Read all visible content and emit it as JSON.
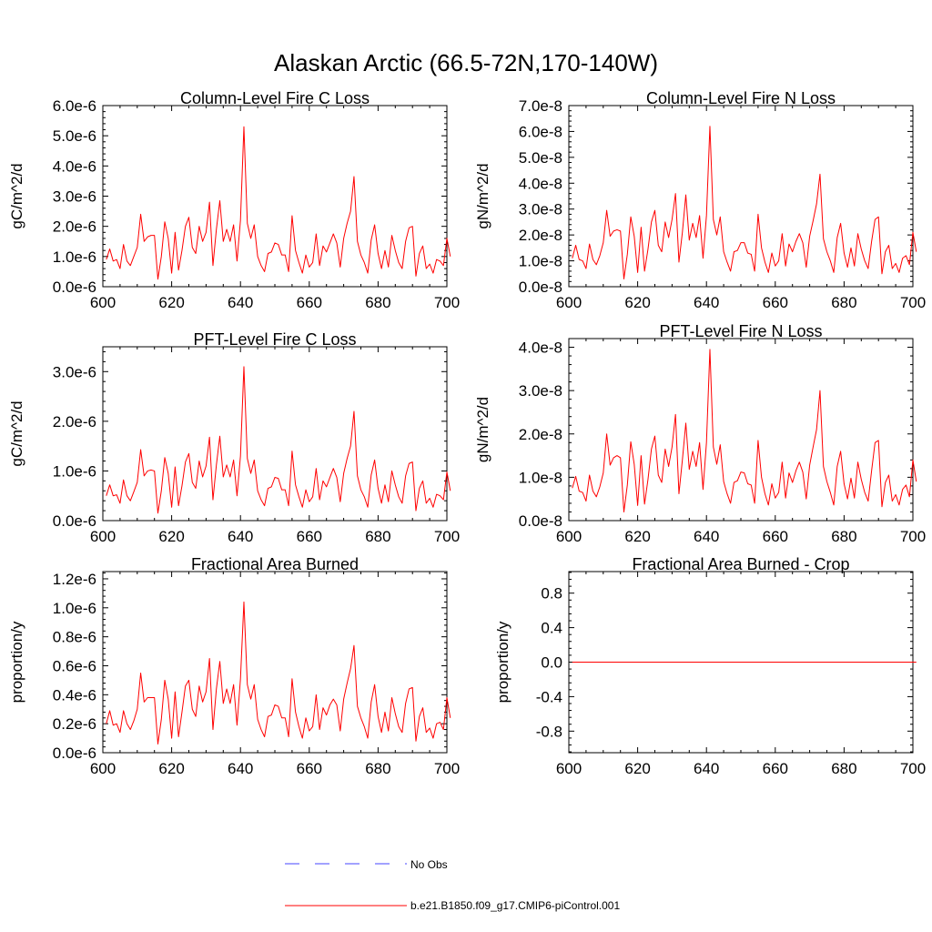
{
  "figure": {
    "title": "Alaskan Arctic (66.5-72N,170-140W)"
  },
  "legend": [
    {
      "label": "No Obs",
      "color": "#4444ff",
      "style": "dashed"
    },
    {
      "label": "b.e21.B1850.f09_g17.CMIP6-piControl.001",
      "color": "#ff0000",
      "style": "solid"
    }
  ],
  "chart_data": [
    {
      "type": "line",
      "title": "Column-Level Fire C Loss",
      "xlabel": "",
      "ylabel": "gC/m^2/d",
      "xlim": [
        600,
        700
      ],
      "ylim": [
        0,
        6e-06
      ],
      "xticks": [
        600,
        620,
        640,
        660,
        680,
        700
      ],
      "xtick_labels": [
        "600",
        "620",
        "640",
        "660",
        "680",
        "700"
      ],
      "yticks": [
        0,
        1e-06,
        2e-06,
        3e-06,
        4e-06,
        5e-06,
        6e-06
      ],
      "ytick_labels": [
        "0.0e-6",
        "1.0e-6",
        "2.0e-6",
        "3.0e-6",
        "4.0e-6",
        "5.0e-6",
        "6.0e-6"
      ],
      "x_start": 601,
      "series": [
        {
          "name": "b.e21.B1850.f09_g17.CMIP6-piControl.001",
          "color": "#ff0000",
          "values": [
            9e-07,
            1.25e-06,
            8.5e-07,
            9e-07,
            6e-07,
            1.4e-06,
            8.5e-07,
            7e-07,
            1e-06,
            1.3e-06,
            2.4e-06,
            1.5e-06,
            1.65e-06,
            1.7e-06,
            1.7e-06,
            2.5e-07,
            1e-06,
            2.15e-06,
            1.6e-06,
            4.5e-07,
            1.8e-06,
            5.5e-07,
            1.2e-06,
            2e-06,
            2.3e-06,
            1.3e-06,
            1.1e-06,
            2e-06,
            1.5e-06,
            1.8e-06,
            2.8e-06,
            7e-07,
            1.9e-06,
            2.85e-06,
            1.5e-06,
            1.9e-06,
            1.5e-06,
            2.05e-06,
            8.5e-07,
            2.2e-06,
            5.3e-06,
            2.1e-06,
            1.6e-06,
            2.05e-06,
            1e-06,
            7e-07,
            5e-07,
            1.1e-06,
            1.15e-06,
            1.45e-06,
            1.4e-06,
            1.05e-06,
            1.05e-06,
            5e-07,
            2.35e-06,
            1.2e-06,
            8e-07,
            4.5e-07,
            1.05e-06,
            6.5e-07,
            8e-07,
            1.75e-06,
            7e-07,
            1.35e-06,
            1.15e-06,
            1.45e-06,
            1.75e-06,
            1.45e-06,
            6.5e-07,
            1.6e-06,
            2.1e-06,
            2.5e-06,
            3.65e-06,
            1.5e-06,
            1.05e-06,
            8e-07,
            4.5e-07,
            1.55e-06,
            2.05e-06,
            1.1e-06,
            6e-07,
            1.2e-06,
            6.5e-07,
            1.7e-06,
            1.2e-06,
            8e-07,
            6e-07,
            1.5e-06,
            1.95e-06,
            2e-06,
            3.5e-07,
            1.1e-06,
            1.35e-06,
            6e-07,
            7.5e-07,
            4.5e-07,
            9e-07,
            8.5e-07,
            7e-07,
            1.6e-06,
            1e-06
          ]
        }
      ]
    },
    {
      "type": "line",
      "title": "Column-Level Fire N Loss",
      "xlabel": "",
      "ylabel": "gN/m^2/d",
      "xlim": [
        600,
        700
      ],
      "ylim": [
        0,
        7e-08
      ],
      "xticks": [
        600,
        620,
        640,
        660,
        680,
        700
      ],
      "xtick_labels": [
        "600",
        "620",
        "640",
        "660",
        "680",
        "700"
      ],
      "yticks": [
        0,
        1e-08,
        2e-08,
        3e-08,
        4e-08,
        5e-08,
        6e-08,
        7e-08
      ],
      "ytick_labels": [
        "0.0e-8",
        "1.0e-8",
        "2.0e-8",
        "3.0e-8",
        "4.0e-8",
        "5.0e-8",
        "6.0e-8",
        "7.0e-8"
      ],
      "x_start": 601,
      "series": [
        {
          "name": "b.e21.B1850.f09_g17.CMIP6-piControl.001",
          "color": "#ff0000",
          "values": [
            1.1e-08,
            1.6e-08,
            1.05e-08,
            1e-08,
            7e-09,
            1.65e-08,
            1.05e-08,
            8.5e-09,
            1.2e-08,
            1.7e-08,
            2.95e-08,
            1.95e-08,
            2.15e-08,
            2.2e-08,
            2.15e-08,
            3e-09,
            1.25e-08,
            2.7e-08,
            1.95e-08,
            5.5e-09,
            2.3e-08,
            6e-09,
            1.45e-08,
            2.5e-08,
            2.95e-08,
            1.6e-08,
            1.35e-08,
            2.5e-08,
            1.9e-08,
            2.6e-08,
            3.6e-08,
            9.5e-09,
            2.1e-08,
            3.55e-08,
            1.8e-08,
            2.45e-08,
            1.9e-08,
            2.75e-08,
            1.1e-08,
            2.75e-08,
            6.2e-08,
            2.6e-08,
            2e-08,
            2.7e-08,
            1.35e-08,
            9.5e-09,
            6e-09,
            1.35e-08,
            1.4e-08,
            1.7e-08,
            1.7e-08,
            1.3e-08,
            1.25e-08,
            6e-09,
            2.8e-08,
            1.5e-08,
            9.5e-09,
            5.5e-09,
            1.3e-08,
            8e-09,
            1e-08,
            2.05e-08,
            8e-09,
            1.65e-08,
            1.35e-08,
            1.75e-08,
            2.05e-08,
            1.7e-08,
            7.5e-09,
            1.95e-08,
            2.55e-08,
            3.2e-08,
            4.35e-08,
            1.85e-08,
            1.35e-08,
            1e-08,
            5.5e-09,
            1.9e-08,
            2.45e-08,
            1.3e-08,
            7.5e-09,
            1.5e-08,
            8e-09,
            2.05e-08,
            1.45e-08,
            1e-08,
            7e-09,
            1.75e-08,
            2.6e-08,
            2.7e-08,
            5e-09,
            1.35e-08,
            1.6e-08,
            7e-09,
            9e-09,
            5.5e-09,
            1.1e-08,
            1.2e-08,
            8.5e-09,
            2.1e-08,
            1.35e-08
          ]
        }
      ]
    },
    {
      "type": "line",
      "title": "PFT-Level Fire C Loss",
      "xlabel": "",
      "ylabel": "gC/m^2/d",
      "xlim": [
        600,
        700
      ],
      "ylim": [
        0,
        3.5e-06
      ],
      "xticks": [
        600,
        620,
        640,
        660,
        680,
        700
      ],
      "xtick_labels": [
        "600",
        "620",
        "640",
        "660",
        "680",
        "700"
      ],
      "yticks": [
        0,
        1e-06,
        2e-06,
        3e-06
      ],
      "ytick_labels": [
        "0.0e-6",
        "1.0e-6",
        "2.0e-6",
        "3.0e-6"
      ],
      "x_start": 601,
      "series": [
        {
          "name": "b.e21.B1850.f09_g17.CMIP6-piControl.001",
          "color": "#ff0000",
          "values": [
            5e-07,
            7.2e-07,
            5e-07,
            5.2e-07,
            3.5e-07,
            8.2e-07,
            5e-07,
            4e-07,
            5.8e-07,
            7.7e-07,
            1.43e-06,
            9e-07,
            1e-06,
            1.02e-06,
            1e-06,
            1.5e-07,
            6e-07,
            1.27e-06,
            9.5e-07,
            2.7e-07,
            1.08e-06,
            3e-07,
            7e-07,
            1.18e-06,
            1.35e-06,
            7.7e-07,
            6.5e-07,
            1.2e-06,
            8.8e-07,
            1.1e-06,
            1.68e-06,
            4.2e-07,
            1.12e-06,
            1.7e-06,
            8.8e-07,
            1.12e-06,
            8.8e-07,
            1.22e-06,
            5e-07,
            1.3e-06,
            3.1e-06,
            1.25e-06,
            9.5e-07,
            1.22e-06,
            6e-07,
            4.2e-07,
            3e-07,
            6.5e-07,
            6.8e-07,
            8.7e-07,
            8.5e-07,
            6.2e-07,
            6.2e-07,
            3e-07,
            1.4e-06,
            7.2e-07,
            4.8e-07,
            2.7e-07,
            6.2e-07,
            3.8e-07,
            4.8e-07,
            1.05e-06,
            4.2e-07,
            8e-07,
            6.8e-07,
            8.7e-07,
            1.05e-06,
            8.7e-07,
            3.8e-07,
            9.5e-07,
            1.25e-06,
            1.5e-06,
            2.2e-06,
            9e-07,
            6.2e-07,
            4.8e-07,
            2.7e-07,
            9.2e-07,
            1.22e-06,
            6.5e-07,
            3.5e-07,
            7.2e-07,
            3.8e-07,
            1e-06,
            7.2e-07,
            4.8e-07,
            3.5e-07,
            9e-07,
            1.15e-06,
            1.18e-06,
            2e-07,
            6.5e-07,
            8e-07,
            3.5e-07,
            4.5e-07,
            2.7e-07,
            5.3e-07,
            5e-07,
            4.2e-07,
            9.8e-07,
            6e-07
          ]
        }
      ]
    },
    {
      "type": "line",
      "title": "PFT-Level Fire N Loss",
      "xlabel": "",
      "ylabel": "gN/m^2/d",
      "xlim": [
        600,
        700
      ],
      "ylim": [
        0,
        4.2e-08
      ],
      "xticks": [
        600,
        620,
        640,
        660,
        680,
        700
      ],
      "xtick_labels": [
        "600",
        "620",
        "640",
        "660",
        "680",
        "700"
      ],
      "yticks": [
        0,
        1e-08,
        2e-08,
        3e-08,
        4e-08
      ],
      "ytick_labels": [
        "0.0e-8",
        "1.0e-8",
        "2.0e-8",
        "3.0e-8",
        "4.0e-8"
      ],
      "x_start": 601,
      "series": [
        {
          "name": "b.e21.B1850.f09_g17.CMIP6-piControl.001",
          "color": "#ff0000",
          "values": [
            7.5e-09,
            1.02e-08,
            6.8e-09,
            6.5e-09,
            4.5e-09,
            1.05e-08,
            6.8e-09,
            5.5e-09,
            7.8e-09,
            1.1e-08,
            2e-08,
            1.28e-08,
            1.45e-08,
            1.5e-08,
            1.45e-08,
            2e-09,
            8.2e-09,
            1.82e-08,
            1.3e-08,
            3.5e-09,
            1.5e-08,
            3.8e-09,
            9.5e-09,
            1.65e-08,
            1.95e-08,
            1.05e-08,
            8.8e-09,
            1.65e-08,
            1.25e-08,
            1.7e-08,
            2.45e-08,
            6.2e-09,
            1.4e-08,
            2.25e-08,
            1.18e-08,
            1.6e-08,
            1.25e-08,
            1.8e-08,
            7.2e-09,
            1.8e-08,
            3.95e-08,
            1.7e-08,
            1.3e-08,
            1.75e-08,
            9e-09,
            6.2e-09,
            4e-09,
            8.8e-09,
            9.2e-09,
            1.12e-08,
            1.1e-08,
            8.5e-09,
            8.2e-09,
            4e-09,
            1.85e-08,
            1e-08,
            6.2e-09,
            3.6e-09,
            8.5e-09,
            5.2e-09,
            6.5e-09,
            1.35e-08,
            5.2e-09,
            1.1e-08,
            8.8e-09,
            1.15e-08,
            1.35e-08,
            1.12e-08,
            5e-09,
            1.28e-08,
            1.7e-08,
            2.1e-08,
            3e-08,
            1.25e-08,
            9e-09,
            6.5e-09,
            3.6e-09,
            1.25e-08,
            1.6e-08,
            8.5e-09,
            5e-09,
            9.8e-09,
            5.2e-09,
            1.35e-08,
            9.5e-09,
            6.5e-09,
            4.5e-09,
            1.15e-08,
            1.8e-08,
            1.85e-08,
            3.2e-09,
            8.8e-09,
            1.05e-08,
            4.5e-09,
            6e-09,
            3.6e-09,
            7.2e-09,
            8.2e-09,
            5.5e-09,
            1.4e-08,
            9e-09
          ]
        }
      ]
    },
    {
      "type": "line",
      "title": "Fractional Area Burned",
      "xlabel": "",
      "ylabel": "proportion/y",
      "xlim": [
        600,
        700
      ],
      "ylim": [
        0,
        1.25e-06
      ],
      "xticks": [
        600,
        620,
        640,
        660,
        680,
        700
      ],
      "xtick_labels": [
        "600",
        "620",
        "640",
        "660",
        "680",
        "700"
      ],
      "yticks": [
        0,
        2e-07,
        4e-07,
        6e-07,
        8e-07,
        1e-06,
        1.2e-06
      ],
      "ytick_labels": [
        "0.0e-6",
        "0.2e-6",
        "0.4e-6",
        "0.6e-6",
        "0.8e-6",
        "1.0e-6",
        "1.2e-6"
      ],
      "x_start": 601,
      "series": [
        {
          "name": "b.e21.B1850.f09_g17.CMIP6-piControl.001",
          "color": "#ff0000",
          "values": [
            2e-07,
            2.9e-07,
            1.9e-07,
            2e-07,
            1.4e-07,
            2.9e-07,
            2e-07,
            1.6e-07,
            2.2e-07,
            3e-07,
            5.5e-07,
            3.5e-07,
            3.8e-07,
            3.8e-07,
            3.8e-07,
            6e-08,
            2.3e-07,
            5e-07,
            3.7e-07,
            1e-07,
            4.2e-07,
            1.1e-07,
            2.8e-07,
            4.6e-07,
            5e-07,
            3e-07,
            2.5e-07,
            4.6e-07,
            3.5e-07,
            4.2e-07,
            6.5e-07,
            1.6e-07,
            4.4e-07,
            6.3e-07,
            3.4e-07,
            4.4e-07,
            3.4e-07,
            4.7e-07,
            1.9e-07,
            5.1e-07,
            1.04e-06,
            4.7e-07,
            3.7e-07,
            4.7e-07,
            2.3e-07,
            1.6e-07,
            1.1e-07,
            2.5e-07,
            2.6e-07,
            3.3e-07,
            3.2e-07,
            2.4e-07,
            2.4e-07,
            1.1e-07,
            5.1e-07,
            2.8e-07,
            1.8e-07,
            1e-07,
            2.4e-07,
            1.5e-07,
            1.8e-07,
            4e-07,
            1.6e-07,
            3.1e-07,
            2.6e-07,
            3.3e-07,
            3.7e-07,
            3.3e-07,
            1.5e-07,
            3.7e-07,
            4.8e-07,
            5.8e-07,
            7.4e-07,
            3.2e-07,
            2.4e-07,
            1.8e-07,
            1e-07,
            3.5e-07,
            4.7e-07,
            2.5e-07,
            1.4e-07,
            2.8e-07,
            1.5e-07,
            3.8e-07,
            2.7e-07,
            1.8e-07,
            1.4e-07,
            3.4e-07,
            4.4e-07,
            4.5e-07,
            8e-08,
            2.5e-07,
            3.1e-07,
            1.4e-07,
            1.7e-07,
            1e-07,
            2e-07,
            2.1e-07,
            1.6e-07,
            3.8e-07,
            2.4e-07
          ]
        }
      ]
    },
    {
      "type": "line",
      "title": "Fractional Area Burned - Crop",
      "xlabel": "",
      "ylabel": "proportion/y",
      "xlim": [
        600,
        700
      ],
      "ylim": [
        -1.05,
        1.05
      ],
      "xticks": [
        600,
        620,
        640,
        660,
        680,
        700
      ],
      "xtick_labels": [
        "600",
        "620",
        "640",
        "660",
        "680",
        "700"
      ],
      "yticks": [
        -0.8,
        -0.4,
        0.0,
        0.4,
        0.8
      ],
      "ytick_labels": [
        "-0.8",
        "-0.4",
        "0.0",
        "0.4",
        "0.8"
      ],
      "x_start": 601,
      "series": [
        {
          "name": "b.e21.B1850.f09_g17.CMIP6-piControl.001",
          "color": "#ff0000",
          "values": [
            0,
            0,
            0,
            0,
            0,
            0,
            0,
            0,
            0,
            0,
            0,
            0,
            0,
            0,
            0,
            0,
            0,
            0,
            0,
            0,
            0,
            0,
            0,
            0,
            0,
            0,
            0,
            0,
            0,
            0,
            0,
            0,
            0,
            0,
            0,
            0,
            0,
            0,
            0,
            0,
            0,
            0,
            0,
            0,
            0,
            0,
            0,
            0,
            0,
            0,
            0,
            0,
            0,
            0,
            0,
            0,
            0,
            0,
            0,
            0,
            0,
            0,
            0,
            0,
            0,
            0,
            0,
            0,
            0,
            0,
            0,
            0,
            0,
            0,
            0,
            0,
            0,
            0,
            0,
            0,
            0,
            0,
            0,
            0,
            0,
            0,
            0,
            0,
            0,
            0,
            0,
            0,
            0,
            0,
            0,
            0,
            0,
            0,
            0,
            0,
            0
          ]
        }
      ]
    }
  ]
}
